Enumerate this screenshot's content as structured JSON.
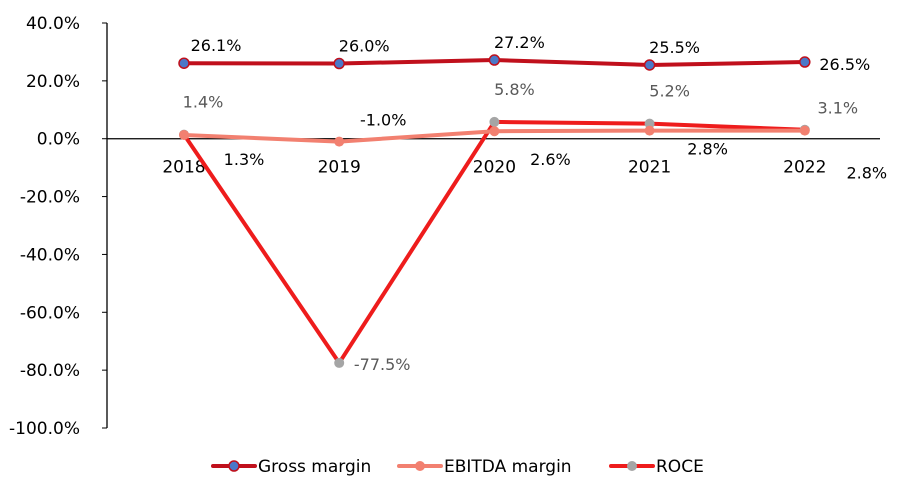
{
  "chart_data": {
    "type": "line",
    "categories": [
      "2018",
      "2019",
      "2020",
      "2021",
      "2022"
    ],
    "ylim": [
      -100,
      40
    ],
    "yticks": [
      40,
      20,
      0,
      -20,
      -40,
      -60,
      -80,
      -100
    ],
    "ytick_labels": [
      "40.0%",
      "20.0%",
      "0.0%",
      "-20.0%",
      "-40.0%",
      "-60.0%",
      "-80.0%",
      "-100.0%"
    ],
    "legend_position": "bottom",
    "grid": false,
    "series": [
      {
        "name": "Gross margin",
        "values": [
          26.1,
          26.0,
          27.2,
          25.5,
          26.5
        ],
        "labels": [
          "26.1%",
          "26.0%",
          "27.2%",
          "25.5%",
          "26.5%"
        ],
        "line_color": "#c0101c",
        "marker_color": "#4a78c8"
      },
      {
        "name": "EBITDA margin",
        "values": [
          1.3,
          -1.0,
          2.6,
          2.8,
          2.8
        ],
        "labels": [
          "1.3%",
          "-1.0%",
          "2.6%",
          "2.8%",
          "2.8%"
        ],
        "line_color": "#f28070",
        "marker_color": "#f28070"
      },
      {
        "name": "ROCE",
        "values": [
          1.4,
          -77.5,
          5.8,
          5.2,
          3.1
        ],
        "labels": [
          "1.4%",
          "-77.5%",
          "5.8%",
          "5.2%",
          "3.1%"
        ],
        "line_color": "#ee1c1c",
        "marker_color": "#a5a5a5"
      }
    ]
  }
}
